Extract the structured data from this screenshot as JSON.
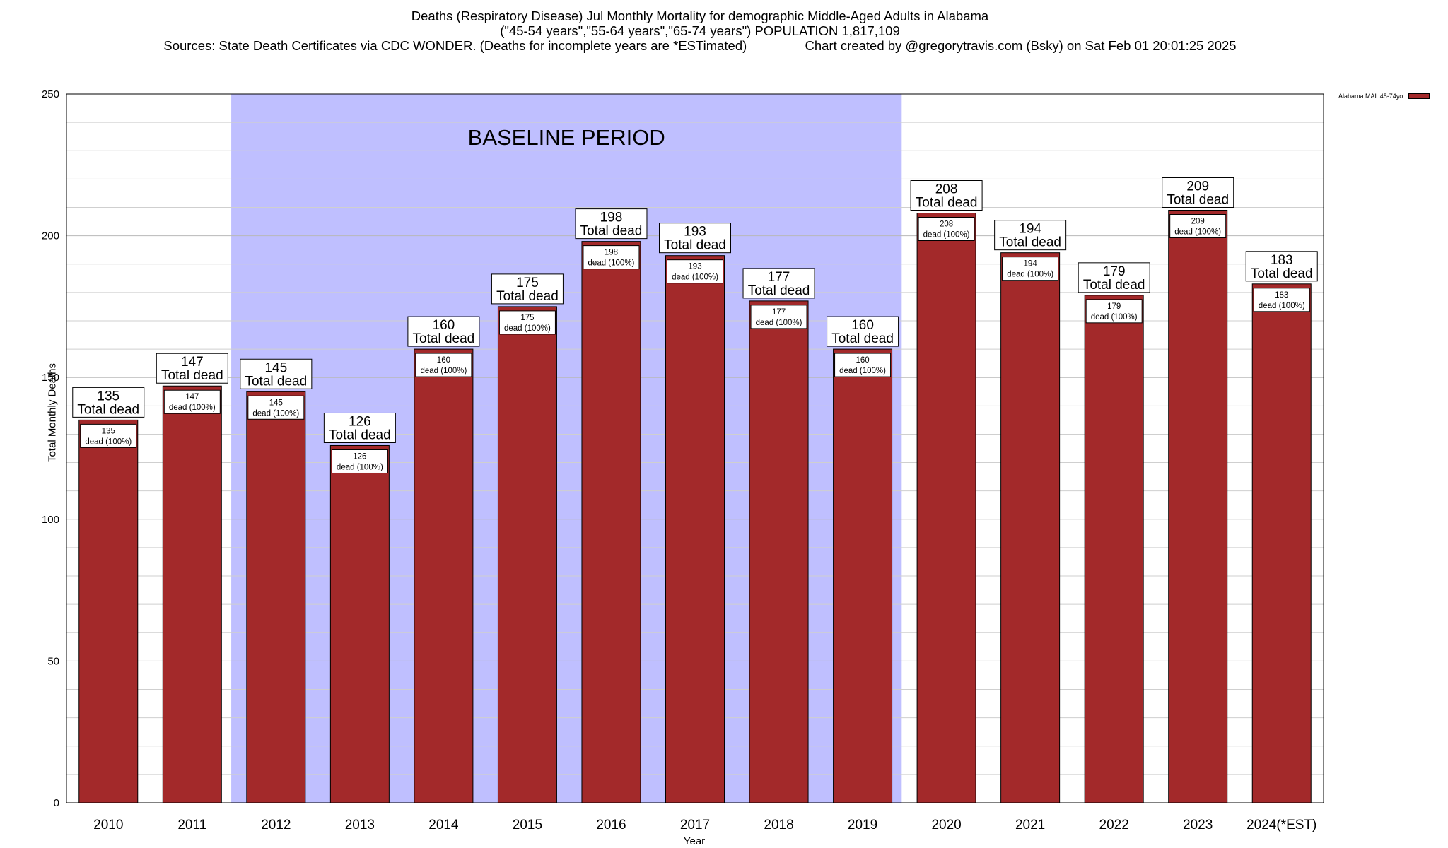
{
  "title": {
    "line1": "Deaths (Respiratory Disease) Jul Monthly Mortality for demographic Middle-Aged Adults in Alabama",
    "line2": "(\"45-54 years\",\"55-64 years\",\"65-74 years\") POPULATION 1,817,109",
    "line3": "Sources: State Death Certificates via CDC WONDER. (Deaths for incomplete years are *ESTimated)                Chart created by @gregorytravis.com (Bsky) on Sat Feb 01 20:01:25 2025"
  },
  "colors": {
    "bar": "#a3292a",
    "baseline_band": "#bfbfff"
  },
  "chart_data": {
    "type": "bar",
    "categories": [
      "2010",
      "2011",
      "2012",
      "2013",
      "2014",
      "2015",
      "2016",
      "2017",
      "2018",
      "2019",
      "2020",
      "2021",
      "2022",
      "2023",
      "2024(*EST)"
    ],
    "series": [
      {
        "name": "Alabama MAL 45-74yo",
        "values": [
          135,
          147,
          145,
          126,
          160,
          175,
          198,
          193,
          177,
          160,
          208,
          194,
          179,
          209,
          183
        ]
      }
    ],
    "total_labels": [
      "Total dead",
      "Total dead",
      "Total dead",
      "Total dead",
      "Total dead",
      "Total dead",
      "Total dead",
      "Total dead",
      "Total dead",
      "Total dead",
      "Total dead",
      "Total dead",
      "Total dead",
      "Total dead",
      "Total dead"
    ],
    "inner_labels": [
      "dead (100%)",
      "dead (100%)",
      "dead (100%)",
      "dead (100%)",
      "dead (100%)",
      "dead (100%)",
      "dead (100%)",
      "dead (100%)",
      "dead (100%)",
      "dead (100%)",
      "dead (100%)",
      "dead (100%)",
      "dead (100%)",
      "dead (100%)",
      "dead (100%)"
    ],
    "xlabel": "Year",
    "ylabel": "Total Monthly Deaths",
    "ylim": [
      0,
      250
    ],
    "yticks": [
      0,
      50,
      100,
      150,
      200,
      250
    ],
    "minor_gridlines": true,
    "annotation": {
      "text": "BASELINE PERIOD",
      "from_category": "2012",
      "to_category": "2019"
    },
    "legend_position": "top-right"
  }
}
